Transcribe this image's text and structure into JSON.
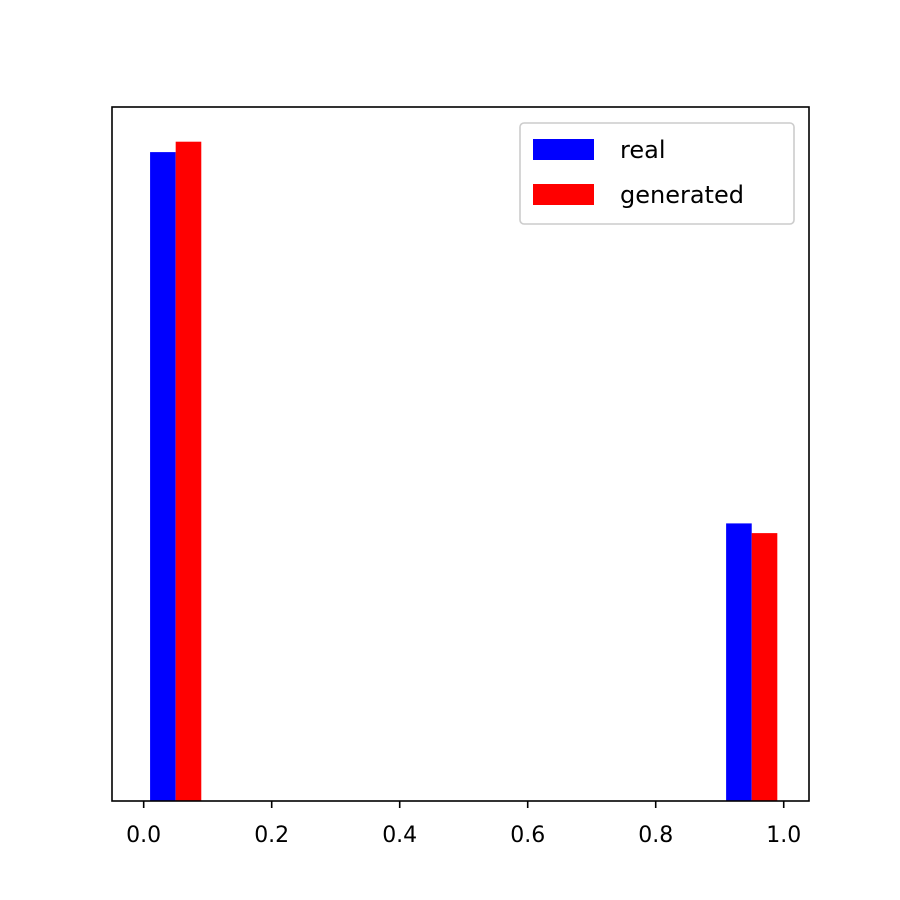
{
  "chart_data": {
    "type": "bar",
    "title": "",
    "xlabel": "",
    "ylabel": "",
    "xlim": [
      -0.0495,
      1.0395
    ],
    "ylim": [
      0,
      1
    ],
    "xticks": [
      0.0,
      0.2,
      0.4,
      0.6,
      0.8,
      1.0
    ],
    "xtick_labels": [
      "0.0",
      "0.2",
      "0.4",
      "0.6",
      "0.8",
      "1.0"
    ],
    "yticks_visible": false,
    "grid": false,
    "legend_position": "top-right",
    "bin_width": 0.04,
    "series": [
      {
        "name": "real",
        "color": "#0000ff",
        "bars": [
          {
            "x_start": 0.01,
            "value": 0.935
          },
          {
            "x_start": 0.91,
            "value": 0.4
          }
        ]
      },
      {
        "name": "generated",
        "color": "#ff0000",
        "bars": [
          {
            "x_start": 0.05,
            "value": 0.95
          },
          {
            "x_start": 0.95,
            "value": 0.386
          }
        ]
      }
    ]
  }
}
